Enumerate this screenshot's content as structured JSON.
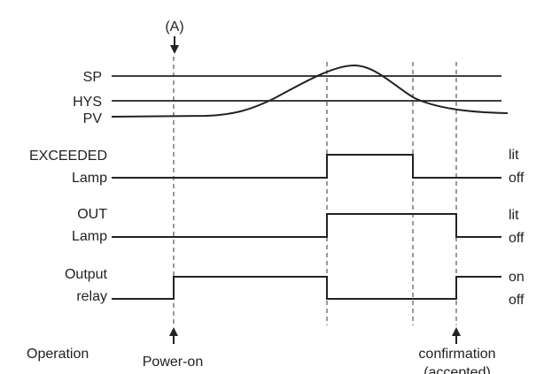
{
  "top_marker": "(A)",
  "signals": {
    "sp": "SP",
    "hys": "HYS",
    "pv": "PV"
  },
  "exceeded_lamp": {
    "label_line1": "EXCEEDED",
    "label_line2": "Lamp",
    "state_high": "lit",
    "state_low": "off"
  },
  "out_lamp": {
    "label_line1": "OUT",
    "label_line2": "Lamp",
    "state_high": "lit",
    "state_low": "off"
  },
  "output_relay": {
    "label_line1": "Output",
    "label_line2": "relay",
    "state_high": "on",
    "state_low": "off"
  },
  "operation": {
    "label": "Operation",
    "power_on": "Power-on",
    "confirmation": "confirmation",
    "accepted": "(accepted)"
  }
}
